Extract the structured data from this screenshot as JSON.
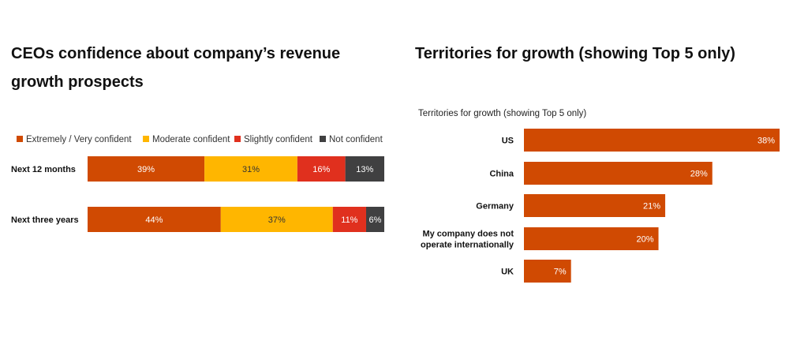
{
  "left": {
    "title": "CEOs confidence about company’s revenue growth prospects"
  },
  "right": {
    "title": "Territories for growth (showing Top 5 only)"
  },
  "chart_data": [
    {
      "type": "bar",
      "orientation": "horizontal",
      "stacked": true,
      "normalized": true,
      "title": "CEOs confidence about company’s revenue growth prospects",
      "categories": [
        "Next 12 months",
        "Next three years"
      ],
      "series": [
        {
          "name": "Extremely / Very confident",
          "values": [
            39,
            44
          ],
          "color": "#d04a02",
          "labels": [
            "39%",
            "44%"
          ]
        },
        {
          "name": "Moderate confident",
          "values": [
            31,
            37
          ],
          "color": "#ffb600",
          "labels": [
            "31%",
            "37%"
          ]
        },
        {
          "name": "Slightly confident",
          "values": [
            16,
            11
          ],
          "color": "#e0301e",
          "labels": [
            "16%",
            "11%"
          ]
        },
        {
          "name": "Not confident",
          "values": [
            13,
            6
          ],
          "color": "#404041",
          "labels": [
            "13%",
            "6%"
          ]
        }
      ],
      "legend": "top",
      "grid": false
    },
    {
      "type": "bar",
      "orientation": "horizontal",
      "title": "Territories for growth (showing Top 5 only)",
      "subtitle": "Territories for growth (showing Top 5 only)",
      "categories": [
        "US",
        "China",
        "Germany",
        "My company does not operate internationally",
        "UK"
      ],
      "category_lines": [
        [
          "US"
        ],
        [
          "China"
        ],
        [
          "Germany"
        ],
        [
          "My company does not",
          "operate internationally"
        ],
        [
          "UK"
        ]
      ],
      "values": [
        38,
        28,
        21,
        20,
        7
      ],
      "labels": [
        "38%",
        "28%",
        "21%",
        "20%",
        "7%"
      ],
      "color": "#d04a02",
      "xlim": [
        0,
        38
      ],
      "grid": false
    }
  ]
}
